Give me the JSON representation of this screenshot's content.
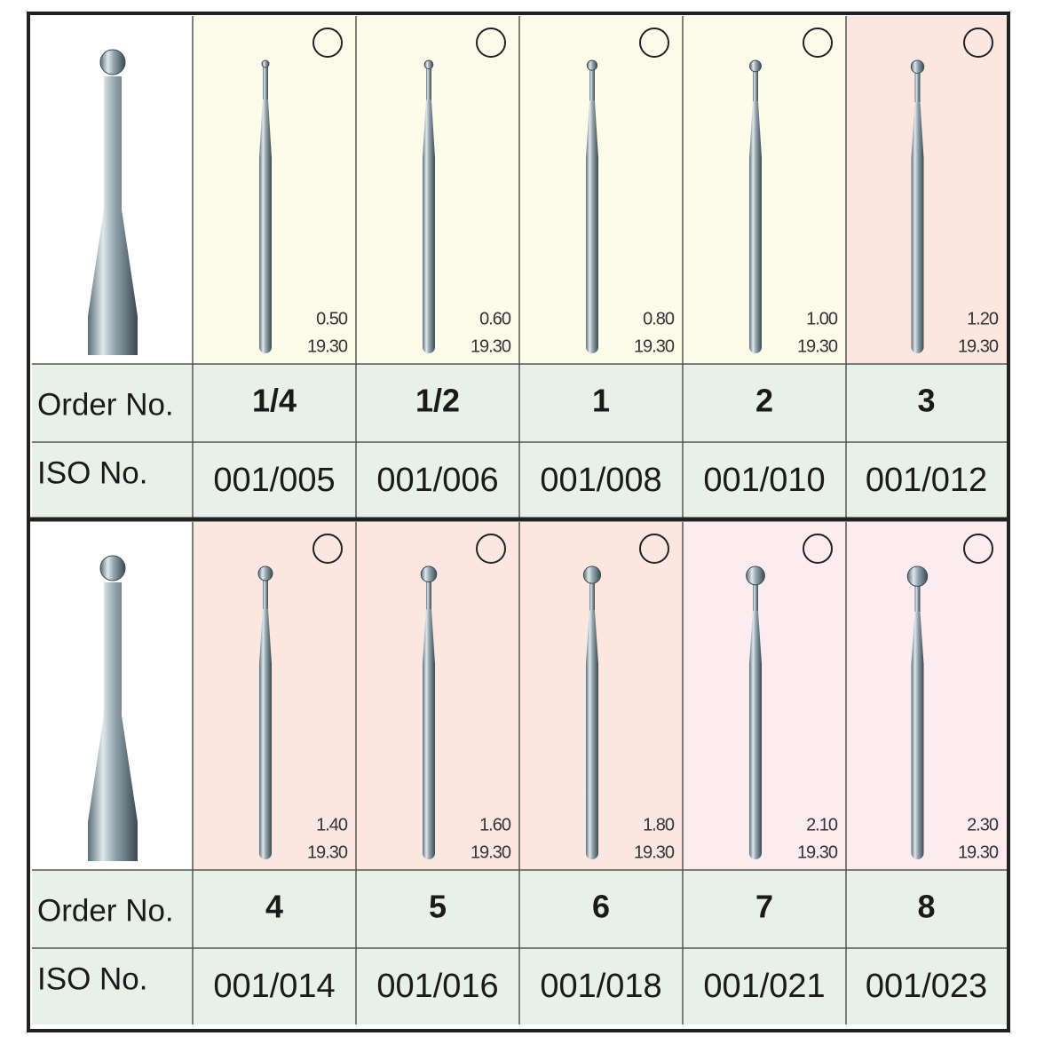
{
  "labels": {
    "order": "Order No.",
    "iso": "ISO No."
  },
  "panels": [
    {
      "products": [
        {
          "size": "0.50",
          "length": "19.30",
          "order": "1/4",
          "iso": "001/005"
        },
        {
          "size": "0.60",
          "length": "19.30",
          "order": "1/2",
          "iso": "001/006"
        },
        {
          "size": "0.80",
          "length": "19.30",
          "order": "1",
          "iso": "001/008"
        },
        {
          "size": "1.00",
          "length": "19.30",
          "order": "2",
          "iso": "001/010"
        },
        {
          "size": "1.20",
          "length": "19.30",
          "order": "3",
          "iso": "001/012"
        }
      ]
    },
    {
      "products": [
        {
          "size": "1.40",
          "length": "19.30",
          "order": "4",
          "iso": "001/014"
        },
        {
          "size": "1.60",
          "length": "19.30",
          "order": "5",
          "iso": "001/016"
        },
        {
          "size": "1.80",
          "length": "19.30",
          "order": "6",
          "iso": "001/018"
        },
        {
          "size": "2.10",
          "length": "19.30",
          "order": "7",
          "iso": "001/021"
        },
        {
          "size": "2.30",
          "length": "19.30",
          "order": "8",
          "iso": "001/023"
        }
      ]
    }
  ]
}
